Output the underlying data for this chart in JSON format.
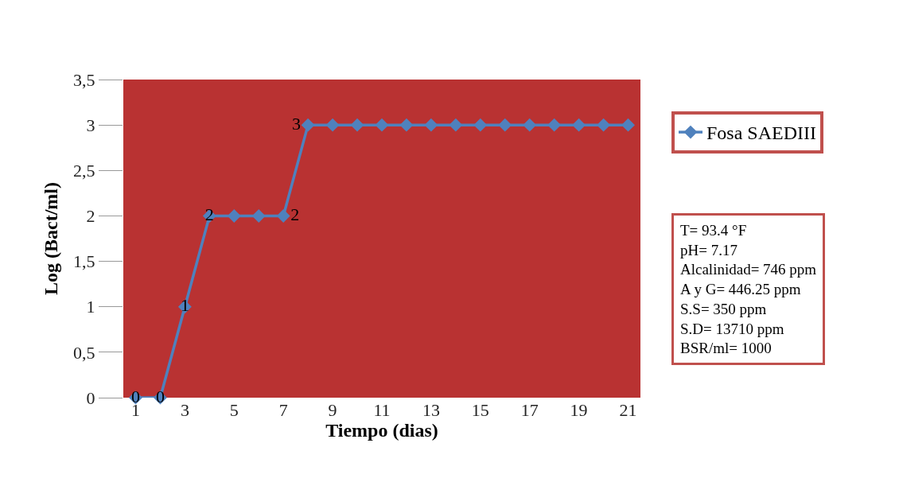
{
  "chart_data": {
    "type": "line",
    "xlabel": "Tiempo (dias)",
    "ylabel": "Log (Bact/ml)",
    "x": [
      1,
      2,
      3,
      4,
      5,
      6,
      7,
      8,
      9,
      10,
      11,
      12,
      13,
      14,
      15,
      16,
      17,
      18,
      19,
      20,
      21
    ],
    "series": [
      {
        "name": "Fosa SAEDIII",
        "color": "#4f81bd",
        "values": [
          0,
          0,
          1,
          2,
          2,
          2,
          2,
          3,
          3,
          3,
          3,
          3,
          3,
          3,
          3,
          3,
          3,
          3,
          3,
          3,
          3
        ],
        "value_labels": [
          "0",
          "0",
          "1",
          "2",
          null,
          null,
          "2",
          "3",
          null,
          null,
          null,
          null,
          null,
          null,
          null,
          null,
          null,
          null,
          null,
          null,
          null
        ]
      }
    ],
    "xlim": [
      0.5,
      21.5
    ],
    "xticks": [
      1,
      3,
      5,
      7,
      9,
      11,
      13,
      15,
      17,
      19,
      21
    ],
    "ylim": [
      0,
      3.5
    ],
    "yticks": [
      {
        "value": 0,
        "label": "0"
      },
      {
        "value": 0.5,
        "label": "0,5"
      },
      {
        "value": 1,
        "label": "1"
      },
      {
        "value": 1.5,
        "label": "1,5"
      },
      {
        "value": 2,
        "label": "2"
      },
      {
        "value": 2.5,
        "label": "2,5"
      },
      {
        "value": 3,
        "label": "3"
      },
      {
        "value": 3.5,
        "label": "3,5"
      }
    ],
    "grid": false,
    "legend": "right",
    "marker": "diamond",
    "line_style": "solid",
    "annotations": [
      "T= 93.4 °F",
      "pH= 7.17",
      "Alcalinidad= 746 ppm",
      "A y G= 446.25 ppm",
      "S.S= 350 ppm",
      "S.D= 13710 ppm",
      "BSR/ml= 1000"
    ]
  }
}
